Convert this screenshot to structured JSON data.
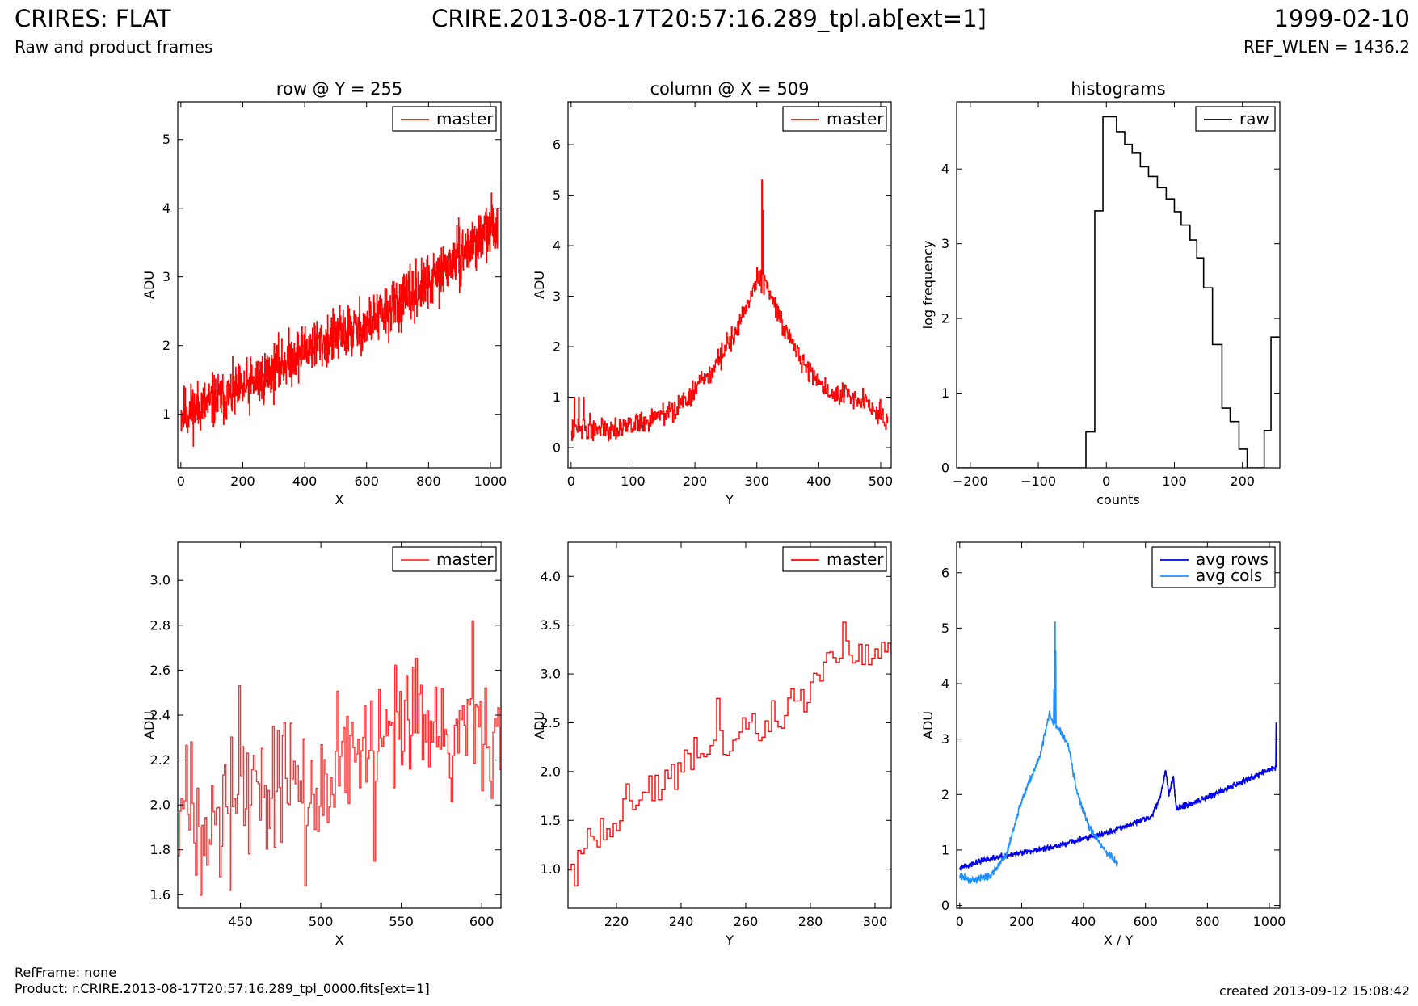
{
  "header": {
    "title_left": "CRIRES: FLAT",
    "subtitle_left": "Raw and product frames",
    "title_center": "CRIRE.2013-08-17T20:57:16.289_tpl.ab[ext=1]",
    "title_right": "1999-02-10",
    "subtitle_right": "REF_WLEN = 1436.2"
  },
  "footer": {
    "refframe": "RefFrame: none",
    "product": "Product: r.CRIRE.2013-08-17T20:57:16.289_tpl_0000.fits[ext=1]",
    "created": "created 2013-09-12 15:08:42"
  },
  "colors": {
    "master": "#ff0000",
    "master_zoom": "#ff3333",
    "raw": "#000000",
    "avg_rows": "#0000ee",
    "avg_cols": "#1e90ff"
  },
  "chart_data": [
    {
      "id": "row",
      "type": "line",
      "title": "row @ Y = 255",
      "xlabel": "X",
      "ylabel": "ADU",
      "xlim": [
        -10,
        1034
      ],
      "ylim": [
        0.22,
        5.55
      ],
      "xticks": [
        0,
        200,
        400,
        600,
        800,
        1000
      ],
      "yticks": [
        1,
        2,
        3,
        4,
        5
      ],
      "legend": "top-right",
      "series": [
        {
          "name": "master",
          "color": "#ff0000",
          "step": true,
          "generator": {
            "kind": "noisy",
            "n": 1024,
            "x0": 0,
            "x1": 1023,
            "knots": [
              [
                0,
                1.0
              ],
              [
                200,
                1.35
              ],
              [
                400,
                1.95
              ],
              [
                600,
                2.3
              ],
              [
                800,
                2.9
              ],
              [
                1023,
                3.8
              ]
            ],
            "noise": 0.3,
            "seed": 11
          }
        }
      ]
    },
    {
      "id": "column",
      "type": "line",
      "title": "column @ X = 509",
      "xlabel": "Y",
      "ylabel": "ADU",
      "xlim": [
        -5,
        517
      ],
      "ylim": [
        -0.4,
        6.85
      ],
      "xticks": [
        0,
        100,
        200,
        300,
        400,
        500
      ],
      "yticks": [
        0,
        1,
        2,
        3,
        4,
        5,
        6
      ],
      "legend": "top-right",
      "series": [
        {
          "name": "master",
          "color": "#ff0000",
          "step": true,
          "generator": {
            "kind": "noisy",
            "n": 512,
            "x0": 0,
            "x1": 511,
            "knots": [
              [
                0,
                0.35
              ],
              [
                100,
                0.45
              ],
              [
                170,
                0.75
              ],
              [
                220,
                1.4
              ],
              [
                260,
                2.2
              ],
              [
                290,
                3.0
              ],
              [
                303,
                3.4
              ],
              [
                320,
                3.1
              ],
              [
                350,
                2.2
              ],
              [
                380,
                1.6
              ],
              [
                420,
                1.05
              ],
              [
                470,
                0.95
              ],
              [
                511,
                0.55
              ]
            ],
            "noise": 0.18,
            "seed": 22,
            "spikes": [
              [
                308,
                5.3
              ],
              [
                310,
                4.7
              ],
              [
                5,
                1.0
              ],
              [
                12,
                1.0
              ],
              [
                20,
                1.0
              ],
              [
                3,
                0.2
              ]
            ]
          }
        }
      ]
    },
    {
      "id": "histograms",
      "type": "line",
      "title": "histograms",
      "xlabel": "counts",
      "ylabel": "log frequency",
      "xlim": [
        -220,
        255
      ],
      "ylim": [
        0,
        4.9
      ],
      "xticks": [
        -200,
        -100,
        0,
        100,
        200
      ],
      "xticklabels": [
        "−200",
        "−100",
        "0",
        "100",
        "200"
      ],
      "yticks": [
        0,
        1,
        2,
        3,
        4
      ],
      "legend": "top-right",
      "series": [
        {
          "name": "raw",
          "color": "#000000",
          "step": true,
          "points": [
            [
              -220,
              0
            ],
            [
              -30,
              0
            ],
            [
              -30,
              0.48
            ],
            [
              -17,
              0.48
            ],
            [
              -17,
              3.44
            ],
            [
              -5,
              3.44
            ],
            [
              -5,
              4.7
            ],
            [
              15,
              4.7
            ],
            [
              15,
              4.5
            ],
            [
              27,
              4.5
            ],
            [
              27,
              4.33
            ],
            [
              38,
              4.33
            ],
            [
              38,
              4.22
            ],
            [
              50,
              4.22
            ],
            [
              50,
              4.03
            ],
            [
              62,
              4.03
            ],
            [
              62,
              3.9
            ],
            [
              75,
              3.9
            ],
            [
              75,
              3.75
            ],
            [
              88,
              3.75
            ],
            [
              88,
              3.6
            ],
            [
              100,
              3.6
            ],
            [
              100,
              3.43
            ],
            [
              110,
              3.43
            ],
            [
              110,
              3.25
            ],
            [
              123,
              3.25
            ],
            [
              123,
              3.05
            ],
            [
              133,
              3.05
            ],
            [
              133,
              2.81
            ],
            [
              143,
              2.81
            ],
            [
              143,
              2.41
            ],
            [
              156,
              2.41
            ],
            [
              156,
              1.65
            ],
            [
              170,
              1.65
            ],
            [
              170,
              0.8
            ],
            [
              182,
              0.8
            ],
            [
              182,
              0.62
            ],
            [
              195,
              0.62
            ],
            [
              195,
              0.25
            ],
            [
              207,
              0.25
            ],
            [
              207,
              0
            ],
            [
              232,
              0
            ],
            [
              232,
              0.5
            ],
            [
              242,
              0.5
            ],
            [
              242,
              1.75
            ],
            [
              255,
              1.75
            ]
          ]
        }
      ]
    },
    {
      "id": "row-zoom",
      "type": "line",
      "title": "",
      "xlabel": "X",
      "ylabel": "ADU",
      "xlim": [
        411,
        612
      ],
      "ylim": [
        1.54,
        3.17
      ],
      "xticks": [
        450,
        500,
        550,
        600
      ],
      "yticks": [
        1.6,
        1.8,
        2.0,
        2.2,
        2.4,
        2.6,
        2.8,
        3.0
      ],
      "yticklabels": [
        "1.6",
        "1.8",
        "2.0",
        "2.2",
        "2.4",
        "2.6",
        "2.8",
        "3.0"
      ],
      "legend": "top-right",
      "series": [
        {
          "name": "master",
          "color": "#ff3333",
          "step": true,
          "generator": {
            "kind": "noisy",
            "n": 202,
            "x0": 411,
            "x1": 612,
            "knots": [
              [
                411,
                1.95
              ],
              [
                450,
                2.05
              ],
              [
                500,
                2.15
              ],
              [
                550,
                2.3
              ],
              [
                612,
                2.35
              ]
            ],
            "noise": 0.24,
            "seed": 33,
            "spikes": [
              [
                449,
                2.53
              ],
              [
                490,
                1.64
              ],
              [
                533,
                1.75
              ],
              [
                594,
                2.82
              ],
              [
                443,
                1.62
              ]
            ]
          }
        }
      ]
    },
    {
      "id": "column-zoom",
      "type": "line",
      "title": "",
      "xlabel": "Y",
      "ylabel": "ADU",
      "xlim": [
        205,
        305
      ],
      "ylim": [
        0.6,
        4.35
      ],
      "xticks": [
        220,
        240,
        260,
        280,
        300
      ],
      "yticks": [
        1.0,
        1.5,
        2.0,
        2.5,
        3.0,
        3.5,
        4.0
      ],
      "yticklabels": [
        "1.0",
        "1.5",
        "2.0",
        "2.5",
        "3.0",
        "3.5",
        "4.0"
      ],
      "legend": "top-right",
      "series": [
        {
          "name": "master",
          "color": "#ff0000",
          "step": true,
          "generator": {
            "kind": "noisy",
            "n": 101,
            "x0": 205,
            "x1": 305,
            "knots": [
              [
                205,
                1.0
              ],
              [
                215,
                1.45
              ],
              [
                230,
                1.8
              ],
              [
                245,
                2.1
              ],
              [
                260,
                2.45
              ],
              [
                275,
                2.6
              ],
              [
                285,
                3.15
              ],
              [
                295,
                3.25
              ],
              [
                305,
                3.22
              ]
            ],
            "noise": 0.18,
            "seed": 44,
            "spikes": [
              [
                207,
                0.83
              ],
              [
                290,
                3.53
              ],
              [
                251,
                2.75
              ]
            ]
          }
        }
      ]
    },
    {
      "id": "averages",
      "type": "line",
      "title": "",
      "xlabel": "X / Y",
      "ylabel": "ADU",
      "xlim": [
        -10,
        1034
      ],
      "ylim": [
        -0.05,
        6.55
      ],
      "xticks": [
        0,
        200,
        400,
        600,
        800,
        1000
      ],
      "yticks": [
        0,
        1,
        2,
        3,
        4,
        5,
        6
      ],
      "legend": "top-right",
      "series": [
        {
          "name": "avg rows",
          "color": "#0000ee",
          "step": false,
          "generator": {
            "kind": "noisy",
            "n": 1024,
            "x0": 0,
            "x1": 1023,
            "knots": [
              [
                0,
                0.68
              ],
              [
                100,
                0.85
              ],
              [
                300,
                1.05
              ],
              [
                500,
                1.35
              ],
              [
                620,
                1.6
              ],
              [
                650,
                2.0
              ],
              [
                665,
                2.45
              ],
              [
                675,
                2.0
              ],
              [
                690,
                2.3
              ],
              [
                700,
                1.75
              ],
              [
                720,
                1.78
              ],
              [
                800,
                1.95
              ],
              [
                900,
                2.2
              ],
              [
                1020,
                2.5
              ]
            ],
            "noise": 0.04,
            "seed": 55,
            "spikes": [
              [
                1022,
                3.3
              ]
            ]
          }
        },
        {
          "name": "avg cols",
          "color": "#1e90ff",
          "step": false,
          "generator": {
            "kind": "noisy",
            "n": 512,
            "x0": 0,
            "x1": 511,
            "knots": [
              [
                0,
                0.55
              ],
              [
                30,
                0.45
              ],
              [
                100,
                0.55
              ],
              [
                150,
                0.9
              ],
              [
                200,
                1.9
              ],
              [
                260,
                2.7
              ],
              [
                290,
                3.5
              ],
              [
                300,
                3.3
              ],
              [
                320,
                3.2
              ],
              [
                350,
                2.9
              ],
              [
                380,
                2.0
              ],
              [
                420,
                1.4
              ],
              [
                460,
                1.05
              ],
              [
                511,
                0.75
              ]
            ],
            "noise": 0.05,
            "seed": 66,
            "spikes": [
              [
                308,
                5.12
              ],
              [
                310,
                4.6
              ],
              [
                304,
                3.9
              ]
            ]
          }
        }
      ]
    }
  ]
}
